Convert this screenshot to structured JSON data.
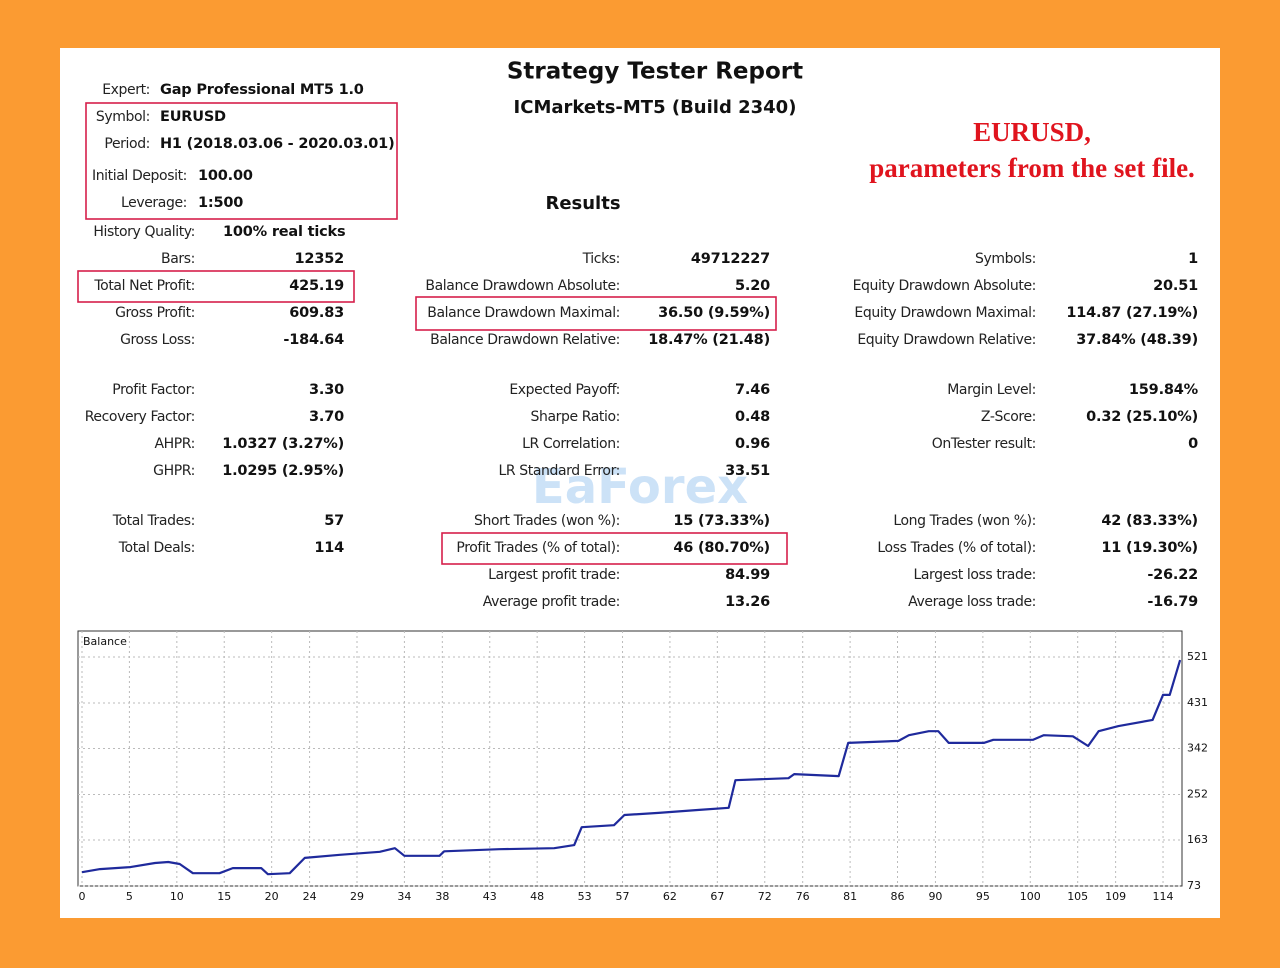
{
  "header": {
    "title": "Strategy Tester Report",
    "subtitle": "ICMarkets-MT5 (Build 2340)"
  },
  "annotation": [
    "EURUSD,",
    "parameters from the set file."
  ],
  "watermark": "EaForex",
  "info": [
    {
      "label": "Expert:",
      "value": "Gap Professional MT5 1.0"
    },
    {
      "label": "Symbol:",
      "value": "EURUSD"
    },
    {
      "label": "Period:",
      "value": "H1 (2018.03.06 - 2020.03.01)"
    },
    {
      "label": "Initial Deposit:",
      "value": "100.00"
    },
    {
      "label": "Leverage:",
      "value": "1:500"
    }
  ],
  "results_title": "Results",
  "history_quality": {
    "label": "History Quality:",
    "value": "100% real ticks"
  },
  "results": [
    [
      {
        "label": "Bars:",
        "value": "12352"
      },
      {
        "label": "Total Net Profit:",
        "value": "425.19"
      },
      {
        "label": "Gross Profit:",
        "value": "609.83"
      },
      {
        "label": "Gross Loss:",
        "value": "-184.64"
      },
      {
        "label": "Profit Factor:",
        "value": "3.30"
      },
      {
        "label": "Recovery Factor:",
        "value": "3.70"
      },
      {
        "label": "AHPR:",
        "value": "1.0327 (3.27%)"
      },
      {
        "label": "GHPR:",
        "value": "1.0295 (2.95%)"
      },
      {
        "label": "Total Trades:",
        "value": "57"
      },
      {
        "label": "Total Deals:",
        "value": "114"
      }
    ],
    [
      {
        "label": "Ticks:",
        "value": "49712227"
      },
      {
        "label": "Balance Drawdown Absolute:",
        "value": "5.20"
      },
      {
        "label": "Balance Drawdown Maximal:",
        "value": "36.50 (9.59%)"
      },
      {
        "label": "Balance Drawdown Relative:",
        "value": "18.47% (21.48)"
      },
      {
        "label": "Expected Payoff:",
        "value": "7.46"
      },
      {
        "label": "Sharpe Ratio:",
        "value": "0.48"
      },
      {
        "label": "LR Correlation:",
        "value": "0.96"
      },
      {
        "label": "LR Standard Error:",
        "value": "33.51"
      },
      {
        "label": "Short Trades (won %):",
        "value": "15 (73.33%)"
      },
      {
        "label": "Profit Trades (% of total):",
        "value": "46 (80.70%)"
      },
      {
        "label": "Largest profit trade:",
        "value": "84.99"
      },
      {
        "label": "Average profit trade:",
        "value": "13.26"
      }
    ],
    [
      {
        "label": "Symbols:",
        "value": "1"
      },
      {
        "label": "Equity Drawdown Absolute:",
        "value": "20.51"
      },
      {
        "label": "Equity Drawdown Maximal:",
        "value": "114.87 (27.19%)"
      },
      {
        "label": "Equity Drawdown Relative:",
        "value": "37.84% (48.39)"
      },
      {
        "label": "Margin Level:",
        "value": "159.84%"
      },
      {
        "label": "Z-Score:",
        "value": "0.32 (25.10%)"
      },
      {
        "label": "OnTester result:",
        "value": "0"
      },
      {
        "label": "Long Trades (won %):",
        "value": "42 (83.33%)"
      },
      {
        "label": "Loss Trades (% of total):",
        "value": "11 (19.30%)"
      },
      {
        "label": "Largest loss trade:",
        "value": "-26.22"
      },
      {
        "label": "Average loss trade:",
        "value": "-16.79"
      }
    ]
  ],
  "chart_data": {
    "type": "line",
    "title": "Balance",
    "color": "#1f2a9c",
    "grid": true,
    "x": [
      0,
      1.9,
      5.1,
      7.7,
      9.1,
      10.3,
      11.7,
      14.5,
      15.9,
      18.9,
      19.6,
      21.9,
      23.5,
      27.2,
      31.4,
      33.0,
      34.0,
      37.7,
      38.2,
      44.0,
      49.8,
      51.9,
      52.7,
      56.1,
      57.2,
      60.8,
      65.1,
      68.2,
      68.9,
      74.5,
      75.1,
      79.8,
      80.8,
      86.1,
      87.2,
      89.3,
      90.3,
      91.4,
      95.1,
      96.1,
      100.3,
      101.4,
      104.5,
      106.1,
      107.2,
      109.3,
      112.9,
      114.0,
      114.7,
      115.8
    ],
    "values": [
      100,
      106,
      110,
      118,
      120,
      116,
      98,
      98,
      108,
      108,
      96,
      98,
      128,
      134,
      140,
      147,
      132,
      132,
      141,
      145,
      147,
      153,
      188,
      192,
      212,
      216,
      222,
      226,
      280,
      284,
      292,
      288,
      353,
      357,
      368,
      376,
      376,
      353,
      353,
      359,
      359,
      368,
      366,
      347,
      376,
      386,
      398,
      447,
      447,
      515
    ],
    "xlim": [
      0,
      116
    ],
    "xticks": [
      0,
      5,
      10,
      15,
      20,
      24,
      29,
      34,
      38,
      43,
      48,
      53,
      57,
      62,
      67,
      72,
      76,
      81,
      86,
      90,
      95,
      100,
      105,
      109,
      114
    ],
    "ylim": [
      73,
      572
    ],
    "yticks": [
      73,
      163,
      252,
      342,
      431,
      521
    ]
  }
}
